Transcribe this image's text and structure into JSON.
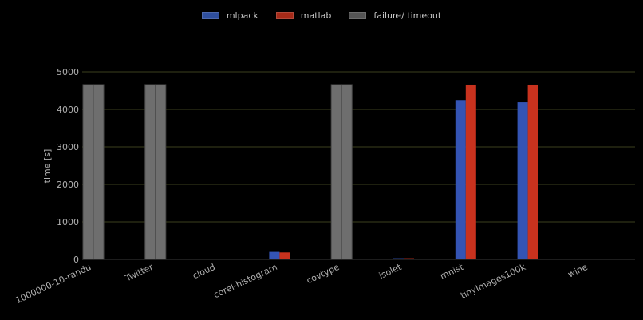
{
  "chart_data": {
    "type": "bar",
    "title": "",
    "xlabel": "",
    "ylabel": "time [s]",
    "ylim": [
      0,
      5000
    ],
    "yticks": [
      0,
      1000,
      2000,
      3000,
      4000,
      5000
    ],
    "grid": true,
    "legend_placement": "top-center",
    "categories": [
      "1000000-10-randu",
      "Twitter",
      "cloud",
      "corel-histogram",
      "covtype",
      "isolet",
      "mnist",
      "tinyImages100k",
      "wine"
    ],
    "series": [
      {
        "name": "mlpack",
        "color": "#3454b4",
        "values": [
          null,
          null,
          null,
          200,
          null,
          30,
          4250,
          4190,
          null
        ]
      },
      {
        "name": "matlab",
        "color": "#c8321e",
        "values": [
          null,
          null,
          null,
          185,
          null,
          30,
          4660,
          4660,
          null
        ]
      }
    ],
    "failure": {
      "name": "failure/ timeout",
      "color": "#6e6e6e",
      "value": 4660,
      "categories": [
        0,
        1,
        4
      ]
    }
  }
}
